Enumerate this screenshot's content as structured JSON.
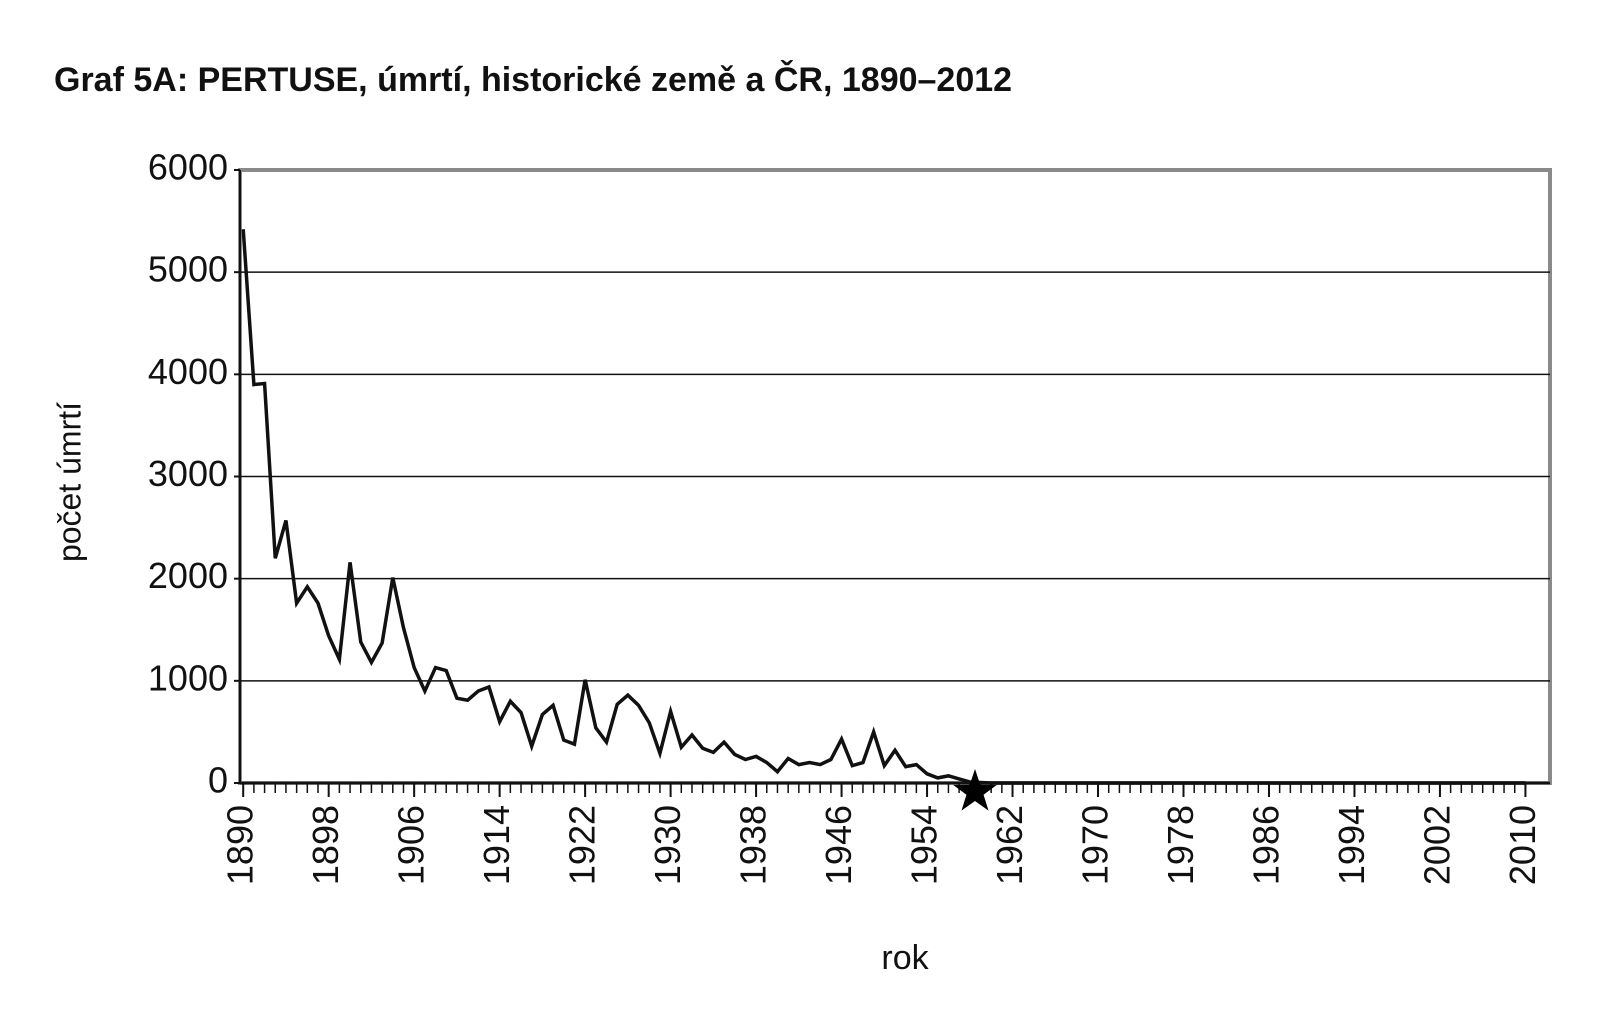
{
  "chart_data": {
    "type": "line",
    "title": "Graf 5A: PERTUSE, úmrtí, historické země a ČR, 1890–2012",
    "xlabel": "rok",
    "ylabel": "počet úmrtí",
    "x": [
      1890,
      1891,
      1892,
      1893,
      1894,
      1895,
      1896,
      1897,
      1898,
      1899,
      1900,
      1901,
      1902,
      1903,
      1904,
      1905,
      1906,
      1907,
      1908,
      1909,
      1910,
      1911,
      1912,
      1913,
      1914,
      1915,
      1916,
      1917,
      1918,
      1919,
      1920,
      1921,
      1922,
      1923,
      1924,
      1925,
      1926,
      1927,
      1928,
      1929,
      1930,
      1931,
      1932,
      1933,
      1934,
      1935,
      1936,
      1937,
      1938,
      1939,
      1940,
      1941,
      1942,
      1943,
      1944,
      1945,
      1946,
      1947,
      1948,
      1949,
      1950,
      1951,
      1952,
      1953,
      1954,
      1955,
      1956,
      1957,
      1958,
      1959,
      1960,
      1961,
      1962,
      1963,
      1964,
      1965,
      1966,
      1967,
      1968,
      1969,
      1970,
      1971,
      1972,
      1973,
      1974,
      1975,
      1976,
      1977,
      1978,
      1979,
      1980,
      1981,
      1982,
      1983,
      1984,
      1985,
      1986,
      1987,
      1988,
      1989,
      1990,
      1991,
      1992,
      1993,
      1994,
      1995,
      1996,
      1997,
      1998,
      1999,
      2000,
      2001,
      2002,
      2003,
      2004,
      2005,
      2006,
      2007,
      2008,
      2009,
      2010
    ],
    "series": [
      {
        "color": "#111111",
        "values": [
          5420,
          3900,
          3910,
          2200,
          2570,
          1760,
          1920,
          1760,
          1440,
          1210,
          2160,
          1380,
          1180,
          1370,
          2010,
          1520,
          1130,
          900,
          1130,
          1100,
          830,
          810,
          900,
          940,
          600,
          800,
          690,
          360,
          670,
          760,
          420,
          380,
          1010,
          540,
          400,
          770,
          860,
          760,
          590,
          290,
          700,
          350,
          470,
          340,
          300,
          400,
          280,
          230,
          260,
          200,
          110,
          240,
          180,
          200,
          180,
          230,
          430,
          170,
          200,
          500,
          170,
          320,
          160,
          180,
          90,
          50,
          70,
          40,
          10,
          5,
          0,
          0,
          0,
          0,
          0,
          0,
          0,
          0,
          0,
          0,
          0,
          0,
          0,
          0,
          0,
          0,
          0,
          0,
          0,
          0,
          0,
          0,
          0,
          0,
          0,
          0,
          0,
          0,
          0,
          0,
          0,
          0,
          0,
          0,
          0,
          0,
          0,
          0,
          0,
          0,
          0,
          0,
          0,
          0,
          0,
          0,
          0,
          0,
          0,
          0,
          0
        ]
      }
    ],
    "xlim": [
      1889.7,
      2012.3
    ],
    "xticks": [
      1890,
      1898,
      1906,
      1914,
      1922,
      1930,
      1938,
      1946,
      1954,
      1962,
      1970,
      1978,
      1986,
      1994,
      2002,
      2010
    ],
    "ylim": [
      0,
      6000
    ],
    "yticks": [
      0,
      1000,
      2000,
      3000,
      4000,
      5000,
      6000
    ],
    "grid": true
  }
}
